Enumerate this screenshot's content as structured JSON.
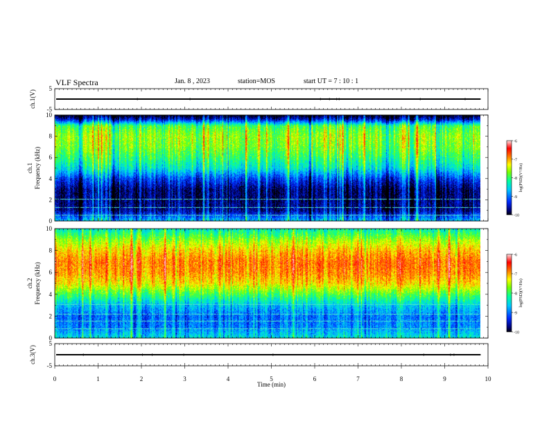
{
  "header": {
    "title": "VLF Spectra",
    "date": "Jan. 8 , 2023",
    "station": "station=MOS",
    "start": "start UT =  7 : 10 : 1"
  },
  "chart_data": {
    "type": "heatmap",
    "xlabel": "Time (min)",
    "xlim": [
      0,
      10
    ],
    "xticks": [
      "0",
      "1",
      "2",
      "3",
      "4",
      "5",
      "6",
      "7",
      "8",
      "9",
      "10"
    ],
    "data_end_min": 9.83,
    "panels": [
      {
        "type": "line",
        "ylabel": "ch.1(V)",
        "ylim": [
          -5,
          5
        ],
        "ytick_labels": [
          "5",
          "-5"
        ],
        "value": 0
      },
      {
        "type": "heatmap",
        "ylabel_top": "ch.1",
        "ylabel": "Frequency (kHz)",
        "ylim": [
          0,
          10
        ],
        "yticks": [
          "0",
          "2",
          "4",
          "6",
          "8",
          "10"
        ],
        "colorbar": {
          "label": "log(PSD)(V²/Hz)",
          "range": [
            -10,
            -6
          ],
          "ticks": [
            "-6",
            "-7",
            "-8",
            "-9",
            "-10"
          ]
        },
        "profile_khz_log_psd": [
          [
            0,
            -8.6
          ],
          [
            1,
            -9.6
          ],
          [
            2,
            -9.7
          ],
          [
            3,
            -9.7
          ],
          [
            4,
            -9.2
          ],
          [
            5,
            -8.4
          ],
          [
            6,
            -8.0
          ],
          [
            7,
            -7.7
          ],
          [
            8,
            -7.6
          ],
          [
            9,
            -7.9
          ],
          [
            9.6,
            -9.4
          ],
          [
            10,
            -10
          ]
        ]
      },
      {
        "type": "heatmap",
        "ylabel_top": "ch.2",
        "ylabel": "Frequency (kHz)",
        "ylim": [
          0,
          10
        ],
        "yticks": [
          "0",
          "2",
          "4",
          "6",
          "8",
          "10"
        ],
        "colorbar": {
          "label": "log(PSD)(V²/Hz)",
          "range": [
            -10,
            -6
          ],
          "ticks": [
            "-6",
            "-7",
            "-8",
            "-9",
            "-10"
          ]
        },
        "profile_khz_log_psd": [
          [
            0,
            -8.4
          ],
          [
            1,
            -8.9
          ],
          [
            2,
            -9.0
          ],
          [
            3,
            -8.6
          ],
          [
            4,
            -7.9
          ],
          [
            5,
            -7.2
          ],
          [
            6,
            -6.9
          ],
          [
            7,
            -6.8
          ],
          [
            8,
            -7.1
          ],
          [
            9,
            -7.6
          ],
          [
            10,
            -8.3
          ]
        ]
      },
      {
        "type": "line",
        "ylabel": "ch.3(V)",
        "ylim": [
          -5,
          5
        ],
        "ytick_labels": [
          "5",
          "-5"
        ],
        "value": 0
      }
    ]
  }
}
